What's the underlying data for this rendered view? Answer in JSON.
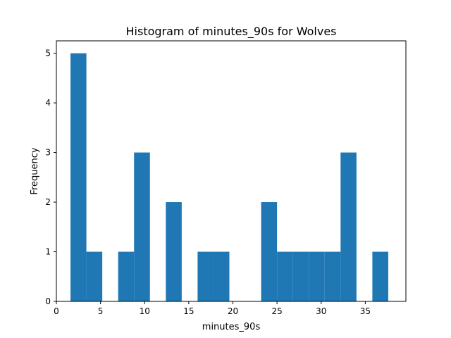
{
  "chart_data": {
    "type": "bar",
    "title": "Histogram of minutes_90s for Wolves",
    "xlabel": "minutes_90s",
    "ylabel": "Frequency",
    "xlim": [
      0.0,
      39.6
    ],
    "ylim": [
      0,
      5.25
    ],
    "xticks": [
      0,
      5,
      10,
      15,
      20,
      25,
      30,
      35
    ],
    "yticks": [
      0,
      1,
      2,
      3,
      4,
      5
    ],
    "grid": false,
    "color": "#1f77b4",
    "bin_edges": [
      1.6,
      3.4,
      5.2,
      7.0,
      8.8,
      10.6,
      12.4,
      14.2,
      16.0,
      17.8,
      19.6,
      21.4,
      23.2,
      25.0,
      26.8,
      28.6,
      30.4,
      32.2,
      34.0,
      35.8,
      37.6
    ],
    "values": [
      5,
      1,
      0,
      1,
      3,
      0,
      2,
      0,
      1,
      1,
      0,
      0,
      2,
      1,
      1,
      1,
      1,
      3,
      0,
      1
    ]
  }
}
